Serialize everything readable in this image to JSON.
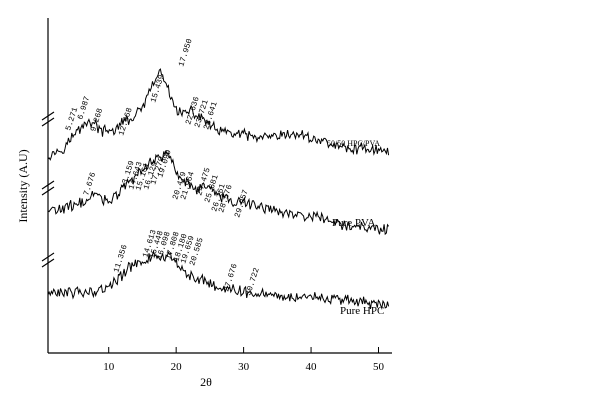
{
  "chart_data": {
    "type": "line",
    "title": "",
    "xlabel": "2θ",
    "ylabel": "Intensity (A.U)",
    "xlim": [
      1,
      52
    ],
    "xticks": [
      10,
      20,
      30,
      40,
      50
    ],
    "yticks": false,
    "grid": false,
    "series": [
      {
        "name": "50/50 HPC/PVA",
        "peak_labels": [
          "5.271",
          "6.987",
          "9.268",
          "12.468",
          "15.439",
          "17.950",
          "22.636",
          "23.721",
          "23.641"
        ],
        "points": [
          [
            1,
            0.0
          ],
          [
            3,
            0.6
          ],
          [
            5,
            2.2
          ],
          [
            6,
            3.0
          ],
          [
            7,
            3.6
          ],
          [
            8,
            3.2
          ],
          [
            9,
            2.5
          ],
          [
            10,
            2.4
          ],
          [
            11,
            2.7
          ],
          [
            12,
            3.4
          ],
          [
            13,
            3.7
          ],
          [
            14,
            4.1
          ],
          [
            15,
            5.0
          ],
          [
            16,
            6.5
          ],
          [
            17,
            8.0
          ],
          [
            17.6,
            8.8
          ],
          [
            18.3,
            7.9
          ],
          [
            19,
            6.3
          ],
          [
            20,
            4.9
          ],
          [
            21,
            4.3
          ],
          [
            22,
            4.6
          ],
          [
            23,
            4.2
          ],
          [
            24,
            3.9
          ],
          [
            25,
            3.1
          ],
          [
            26,
            2.6
          ],
          [
            27,
            2.4
          ],
          [
            28,
            2.3
          ],
          [
            30,
            2.1
          ],
          [
            32,
            1.8
          ],
          [
            34,
            1.8
          ],
          [
            36,
            2.0
          ],
          [
            38,
            2.2
          ],
          [
            40,
            1.8
          ],
          [
            42,
            1.4
          ],
          [
            44,
            0.9
          ],
          [
            46,
            0.6
          ],
          [
            48,
            0.8
          ],
          [
            50,
            0.5
          ],
          [
            51.5,
            0.3
          ]
        ]
      },
      {
        "name": "Pure PVA",
        "peak_labels": [
          "7.676",
          "13.159",
          "14.643",
          "15.161",
          "16.129",
          "17.279",
          "19.099",
          "20.479",
          "21.964",
          "24.475",
          "25.681",
          "26.161",
          "28.576",
          "29.957"
        ],
        "points": [
          [
            1,
            0.0
          ],
          [
            3,
            0.2
          ],
          [
            5,
            0.6
          ],
          [
            7,
            1.3
          ],
          [
            8,
            1.7
          ],
          [
            9,
            1.4
          ],
          [
            10,
            1.1
          ],
          [
            11,
            1.5
          ],
          [
            12,
            2.4
          ],
          [
            13,
            3.0
          ],
          [
            14,
            3.6
          ],
          [
            15,
            4.3
          ],
          [
            16,
            5.0
          ],
          [
            17,
            5.6
          ],
          [
            18,
            5.8
          ],
          [
            18.6,
            6.2
          ],
          [
            19.2,
            5.5
          ],
          [
            20,
            4.3
          ],
          [
            21,
            3.4
          ],
          [
            22,
            2.7
          ],
          [
            23,
            2.3
          ],
          [
            24,
            2.7
          ],
          [
            25,
            2.3
          ],
          [
            26,
            1.8
          ],
          [
            27,
            1.4
          ],
          [
            28,
            1.2
          ],
          [
            29,
            1.0
          ],
          [
            30,
            0.9
          ],
          [
            32,
            0.6
          ],
          [
            34,
            0.2
          ],
          [
            36,
            -0.2
          ],
          [
            38,
            -0.4
          ],
          [
            40,
            -0.6
          ],
          [
            42,
            -0.9
          ],
          [
            44,
            -1.3
          ],
          [
            46,
            -1.5
          ],
          [
            48,
            -1.6
          ],
          [
            50,
            -1.9
          ],
          [
            51.5,
            -1.9
          ]
        ]
      },
      {
        "name": "Pure HPC",
        "peak_labels": [
          "11.356",
          "14.613",
          "15.448",
          "16.098",
          "17.808",
          "18.180",
          "19.659",
          "20.585",
          "27.676",
          "30.722"
        ],
        "points": [
          [
            1,
            0.0
          ],
          [
            3,
            0.1
          ],
          [
            5,
            0.2
          ],
          [
            7,
            0.3
          ],
          [
            9,
            0.5
          ],
          [
            10,
            0.8
          ],
          [
            11,
            1.3
          ],
          [
            12,
            1.9
          ],
          [
            13,
            2.8
          ],
          [
            14,
            3.3
          ],
          [
            15,
            3.5
          ],
          [
            16,
            3.8
          ],
          [
            17,
            4.0
          ],
          [
            18,
            4.0
          ],
          [
            19,
            3.8
          ],
          [
            20,
            3.3
          ],
          [
            21,
            2.7
          ],
          [
            22,
            2.0
          ],
          [
            23,
            1.6
          ],
          [
            24,
            1.5
          ],
          [
            25,
            1.1
          ],
          [
            26,
            0.8
          ],
          [
            27,
            0.6
          ],
          [
            28,
            0.5
          ],
          [
            30,
            0.3
          ],
          [
            32,
            0.2
          ],
          [
            34,
            -0.1
          ],
          [
            36,
            -0.3
          ],
          [
            38,
            -0.3
          ],
          [
            40,
            -0.4
          ],
          [
            42,
            -0.5
          ],
          [
            44,
            -0.6
          ],
          [
            46,
            -0.7
          ],
          [
            48,
            -0.9
          ],
          [
            50,
            -1.1
          ],
          [
            51.5,
            -1.3
          ]
        ]
      }
    ]
  }
}
